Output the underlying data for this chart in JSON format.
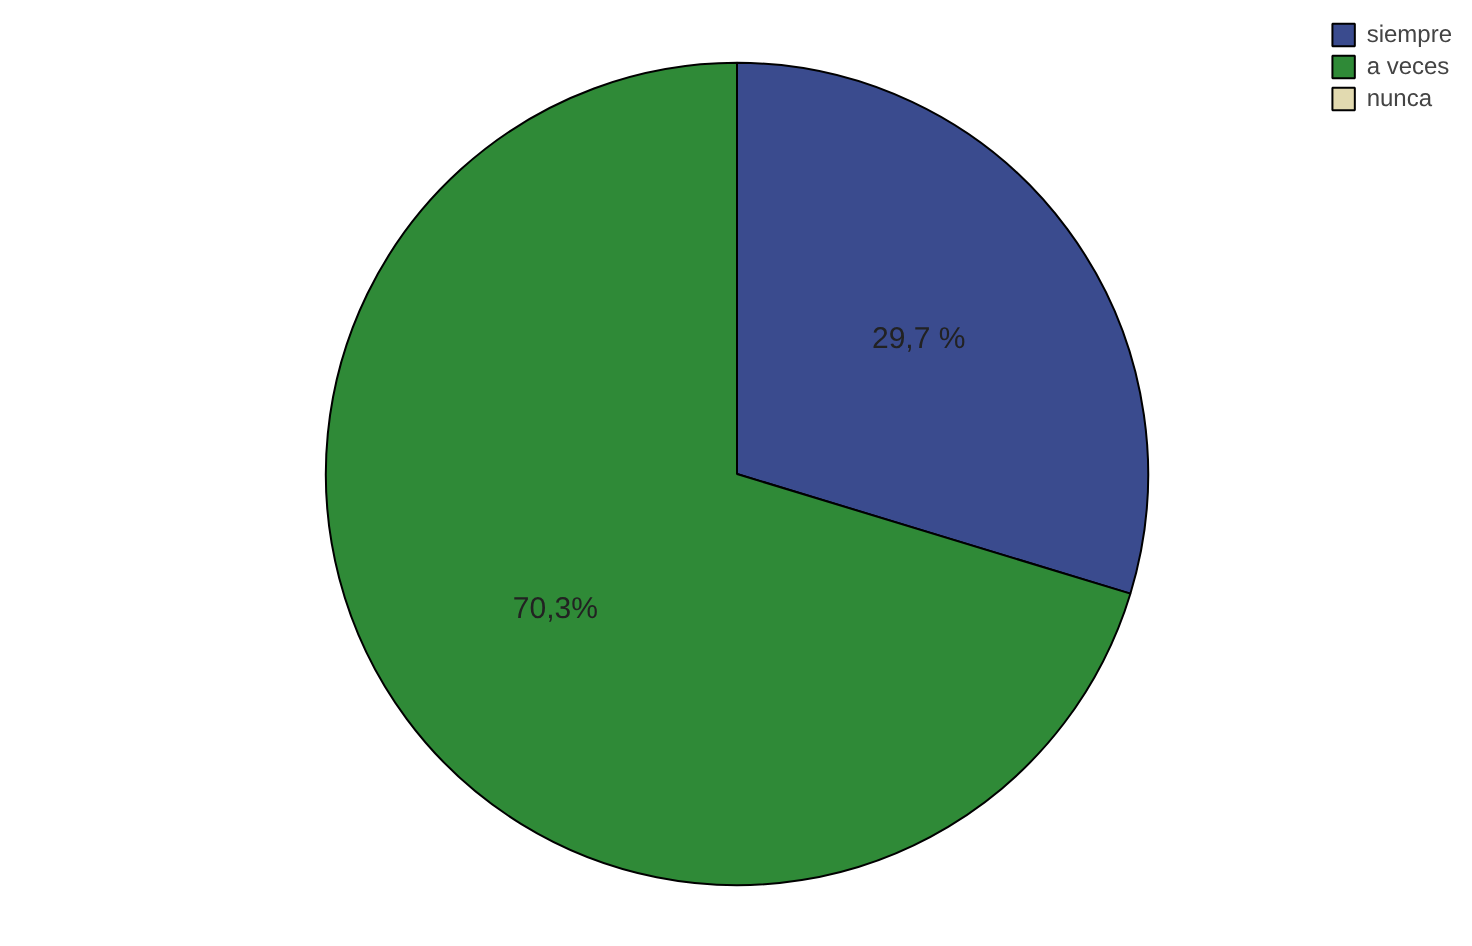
{
  "chart_data": {
    "type": "pie",
    "categories": [
      "siempre",
      "a veces",
      "nunca"
    ],
    "values": [
      29.7,
      70.3,
      0
    ],
    "colors": [
      "#3a4b8e",
      "#2f8a37",
      "#e2dab0"
    ],
    "value_labels": [
      "29,7 %",
      "70,3%",
      null
    ],
    "legend": "top right"
  }
}
